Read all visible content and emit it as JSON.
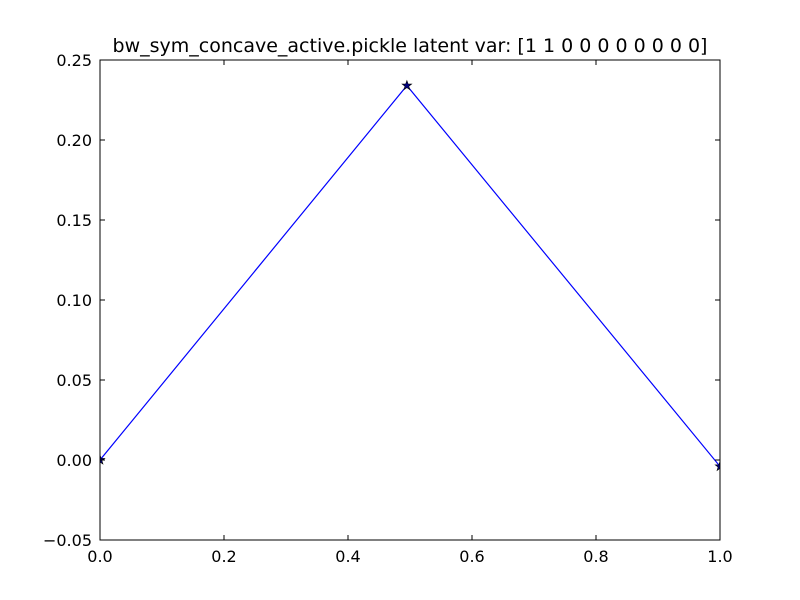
{
  "chart_data": {
    "type": "line",
    "title": "bw_sym_concave_active.pickle latent var: [1 1 0 0 0 0 0 0 0 0]",
    "xlabel": "",
    "ylabel": "",
    "xlim": [
      0.0,
      1.0
    ],
    "ylim": [
      -0.05,
      0.25
    ],
    "x_ticks": [
      "0.0",
      "0.2",
      "0.4",
      "0.6",
      "0.8",
      "1.0"
    ],
    "x_tick_values": [
      0.0,
      0.2,
      0.4,
      0.6,
      0.8,
      1.0
    ],
    "y_ticks": [
      "−0.05",
      "0.00",
      "0.05",
      "0.10",
      "0.15",
      "0.20",
      "0.25"
    ],
    "y_tick_values": [
      -0.05,
      0.0,
      0.05,
      0.1,
      0.15,
      0.2,
      0.25
    ],
    "grid": false,
    "series": [
      {
        "x": [
          0.0,
          0.495,
          1.0
        ],
        "y": [
          0.0,
          0.234,
          -0.004
        ],
        "color": "#0000ff",
        "marker": "star"
      }
    ]
  }
}
